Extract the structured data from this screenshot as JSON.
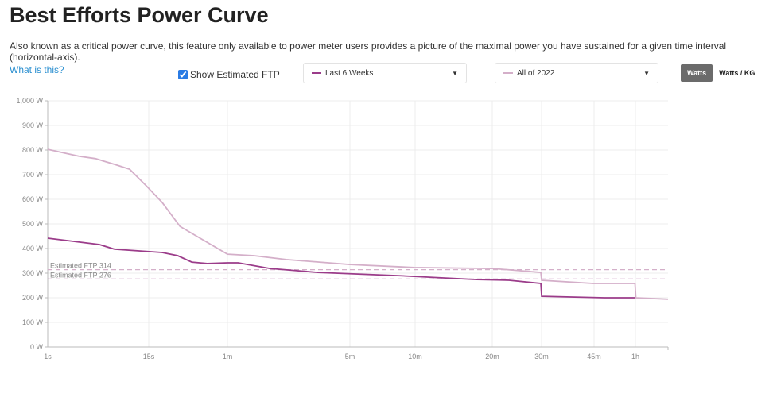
{
  "title": "Best Efforts Power Curve",
  "description": "Also known as a critical power curve, this feature only available to power meter users provides a picture of the maximal power you have sustained for a given time interval (horizontal-axis).",
  "what_link": "What is this?",
  "show_ftp": {
    "label": "Show Estimated FTP",
    "checked": true
  },
  "range1": {
    "label": "Last 6 Weeks",
    "color": "#9b3c8a"
  },
  "range2": {
    "label": "All of 2022",
    "color": "#d4afc9"
  },
  "units": {
    "watts": "Watts",
    "wkg": "Watts / KG",
    "active": "Watts"
  },
  "chart_data": {
    "type": "line",
    "x_unit": "seconds",
    "x_ticks": [
      {
        "v": 1,
        "label": "1s"
      },
      {
        "v": 15,
        "label": "15s"
      },
      {
        "v": 60,
        "label": "1m"
      },
      {
        "v": 300,
        "label": "5m"
      },
      {
        "v": 600,
        "label": "10m"
      },
      {
        "v": 1200,
        "label": "20m"
      },
      {
        "v": 1800,
        "label": "30m"
      },
      {
        "v": 2700,
        "label": "45m"
      },
      {
        "v": 3600,
        "label": "1h"
      }
    ],
    "xlim": [
      1,
      4500
    ],
    "ylim": [
      0,
      1000
    ],
    "y_ticks": [
      {
        "v": 0,
        "label": "0 W"
      },
      {
        "v": 100,
        "label": "100 W"
      },
      {
        "v": 200,
        "label": "200 W"
      },
      {
        "v": 300,
        "label": "300 W"
      },
      {
        "v": 400,
        "label": "400 W"
      },
      {
        "v": 500,
        "label": "500 W"
      },
      {
        "v": 600,
        "label": "600 W"
      },
      {
        "v": 700,
        "label": "700 W"
      },
      {
        "v": 800,
        "label": "800 W"
      },
      {
        "v": 900,
        "label": "900 W"
      },
      {
        "v": 1000,
        "label": "1,000 W"
      }
    ],
    "grid": true,
    "ftp_lines": [
      {
        "label": "Estimated FTP 314",
        "value": 314,
        "color": "#d4afc9"
      },
      {
        "label": "Estimated FTP 276",
        "value": 276,
        "color": "#9b3c8a"
      }
    ],
    "series": [
      {
        "name": "All of 2022",
        "color": "#d4afc9",
        "points": [
          [
            1,
            803
          ],
          [
            2.3,
            775
          ],
          [
            3.6,
            765
          ],
          [
            6,
            742
          ],
          [
            9,
            722
          ],
          [
            14,
            655
          ],
          [
            19,
            587
          ],
          [
            26,
            490
          ],
          [
            39,
            435
          ],
          [
            60,
            377
          ],
          [
            85,
            371
          ],
          [
            130,
            355
          ],
          [
            300,
            335
          ],
          [
            595,
            323
          ],
          [
            1200,
            319
          ],
          [
            1790,
            303
          ],
          [
            1801,
            271
          ],
          [
            2680,
            258
          ],
          [
            3590,
            258
          ],
          [
            3610,
            200
          ],
          [
            4500,
            194
          ]
        ]
      },
      {
        "name": "Last 6 Weeks",
        "color": "#9b3c8a",
        "points": [
          [
            1,
            442
          ],
          [
            4,
            416
          ],
          [
            6,
            397
          ],
          [
            19,
            384
          ],
          [
            25,
            371
          ],
          [
            32,
            345
          ],
          [
            42,
            339
          ],
          [
            60,
            342
          ],
          [
            69,
            342
          ],
          [
            105,
            319
          ],
          [
            197,
            303
          ],
          [
            500,
            290
          ],
          [
            1047,
            274
          ],
          [
            1378,
            271
          ],
          [
            1790,
            258
          ],
          [
            1801,
            206
          ],
          [
            2900,
            200
          ],
          [
            3600,
            200
          ]
        ]
      }
    ]
  }
}
